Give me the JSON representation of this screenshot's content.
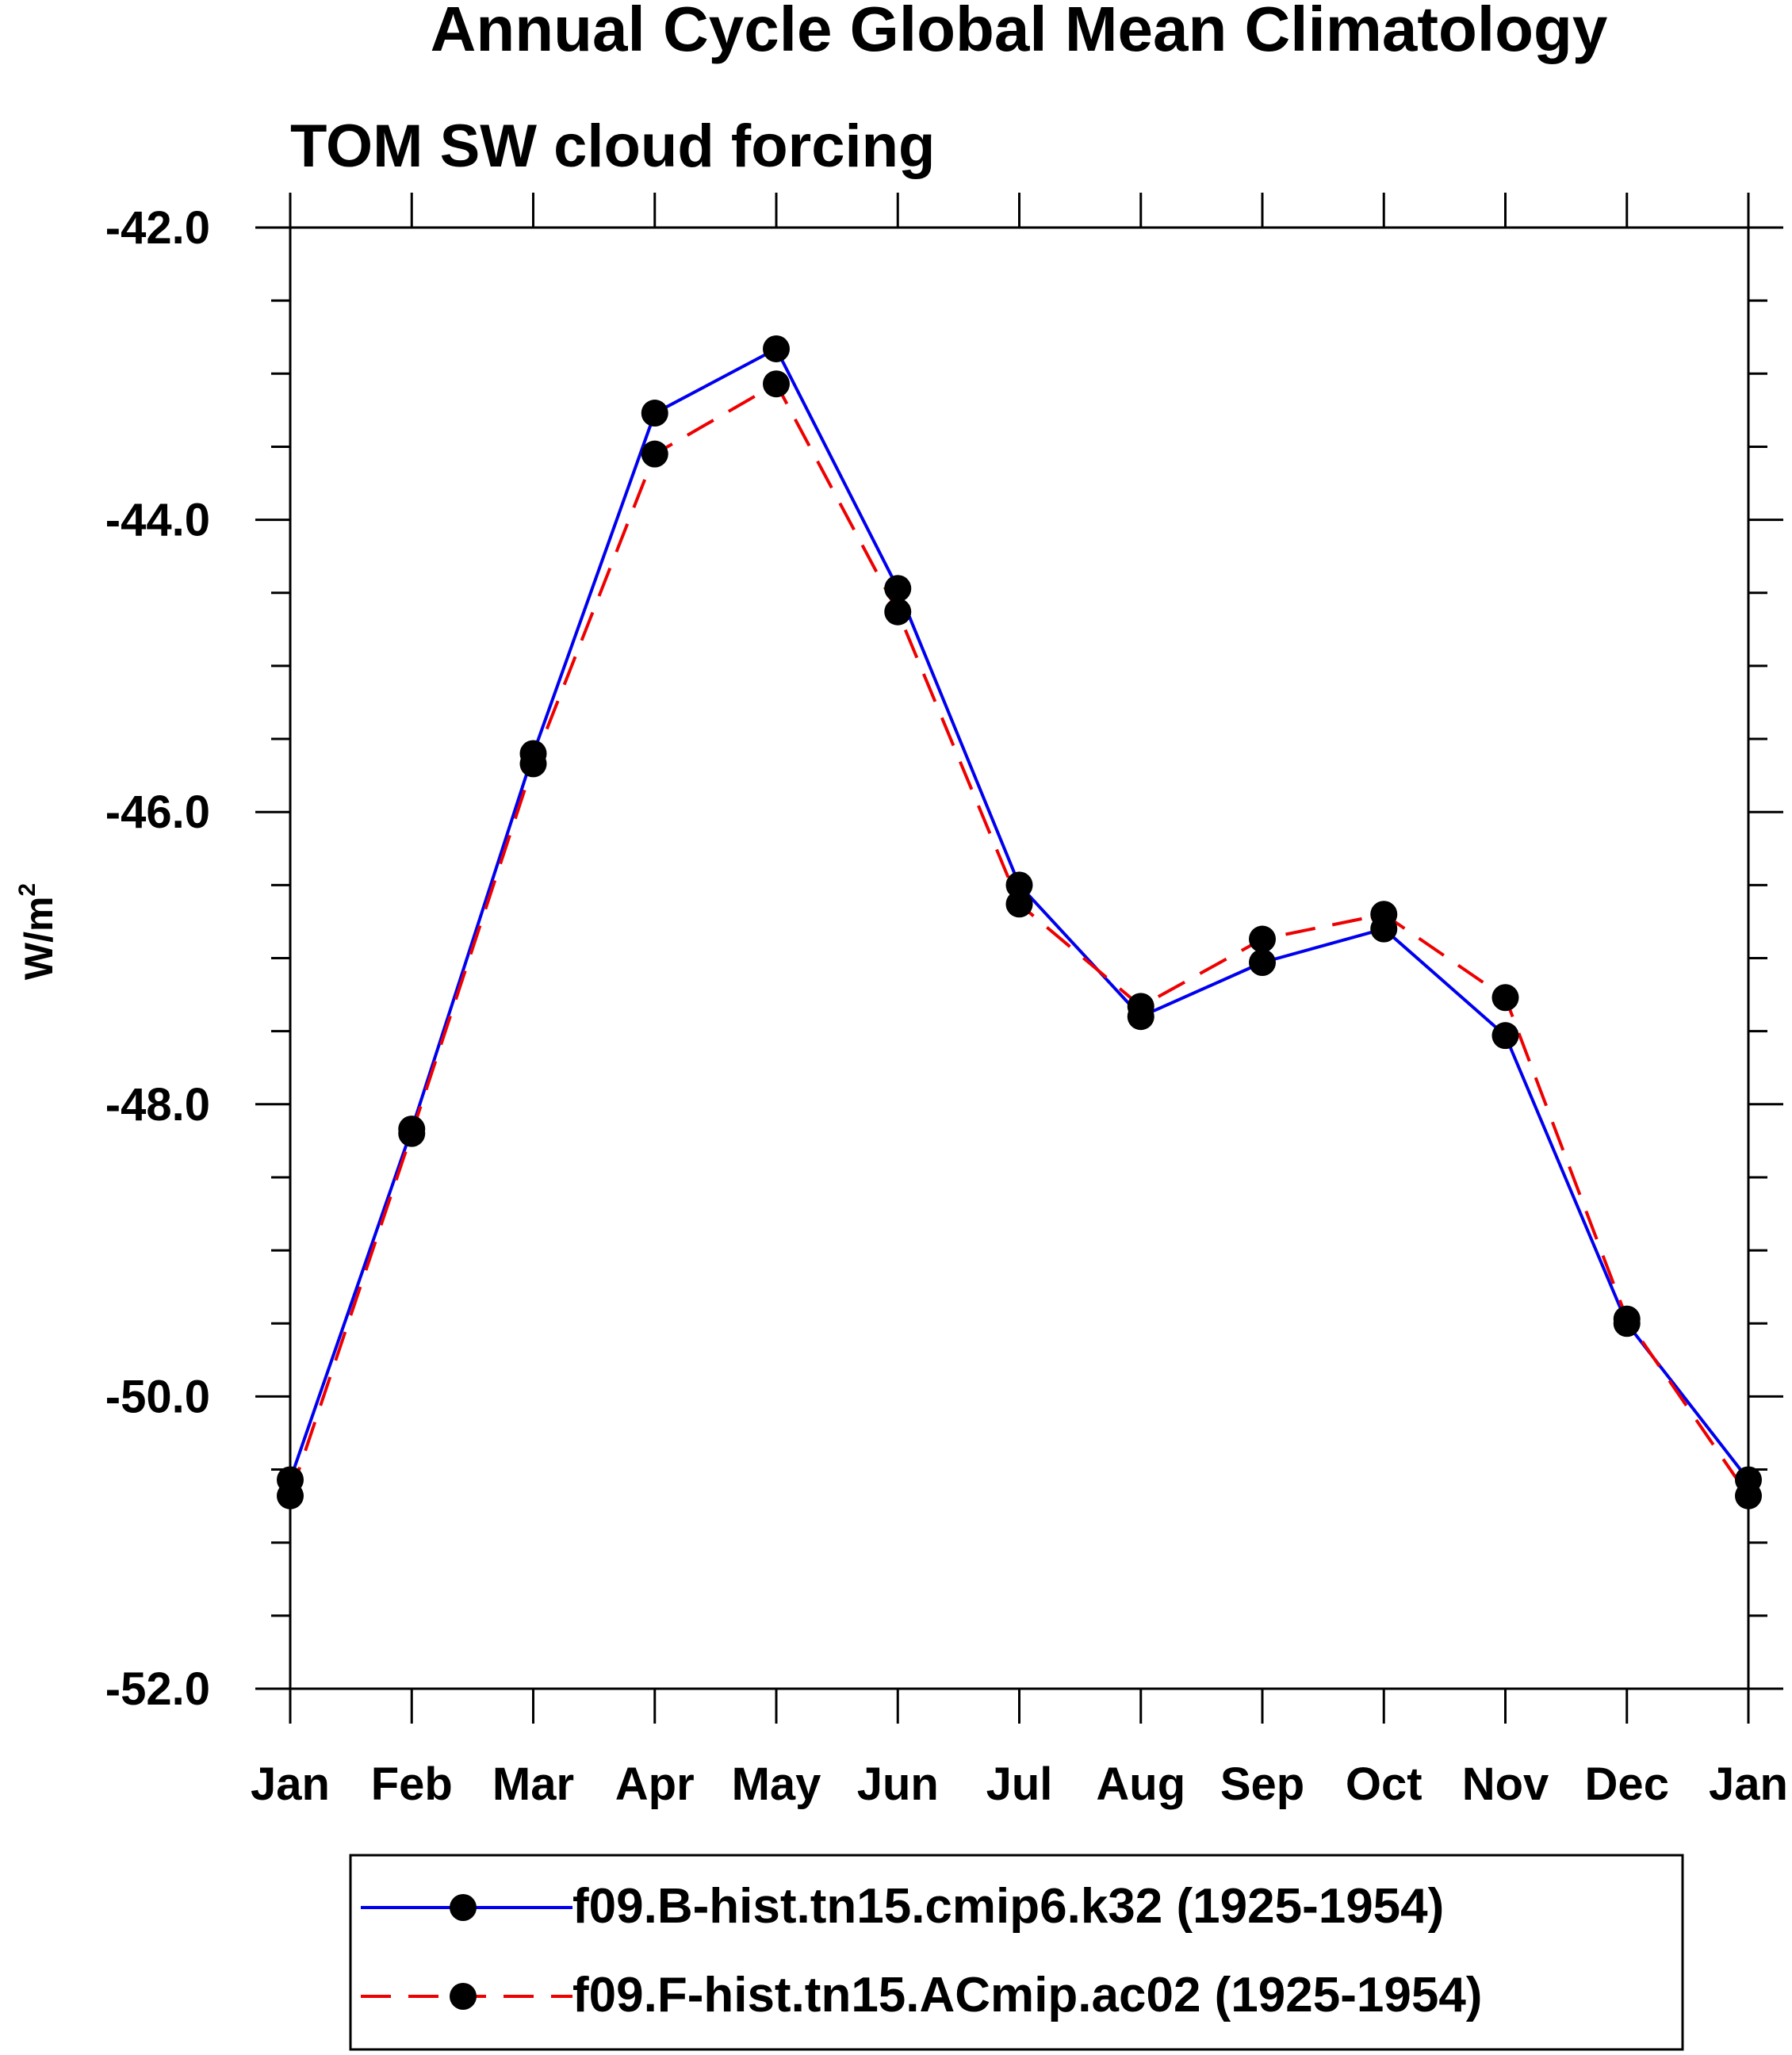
{
  "chart_data": {
    "type": "line",
    "title": "Annual Cycle Global Mean Climatology",
    "subtitle": "TOM SW cloud forcing",
    "xlabel": "",
    "ylabel_base": "W/m",
    "ylabel_sup": "2",
    "categories": [
      "Jan",
      "Feb",
      "Mar",
      "Apr",
      "May",
      "Jun",
      "Jul",
      "Aug",
      "Sep",
      "Oct",
      "Nov",
      "Dec",
      "Jan"
    ],
    "ylim": [
      -52.0,
      -42.0
    ],
    "yticks": [
      "-42.0",
      "-44.0",
      "-46.0",
      "-48.0",
      "-50.0",
      "-52.0"
    ],
    "series": [
      {
        "name": "f09.B-hist.tn15.cmip6.k32 (1925-1954)",
        "color": "#0000ee",
        "dash": "solid",
        "values": [
          -50.57,
          -48.17,
          -45.6,
          -43.27,
          -42.83,
          -44.47,
          -46.5,
          -47.4,
          -47.03,
          -46.8,
          -47.53,
          -49.5,
          -50.57
        ]
      },
      {
        "name": "f09.F-hist.tn15.ACmip.ac02 (1925-1954)",
        "color": "#ee0000",
        "dash": "dashed",
        "values": [
          -50.68,
          -48.2,
          -45.67,
          -43.55,
          -43.07,
          -44.63,
          -46.63,
          -47.33,
          -46.87,
          -46.7,
          -47.27,
          -49.47,
          -50.68
        ]
      }
    ],
    "marker_color": "#000000",
    "legend_position": "bottom"
  }
}
